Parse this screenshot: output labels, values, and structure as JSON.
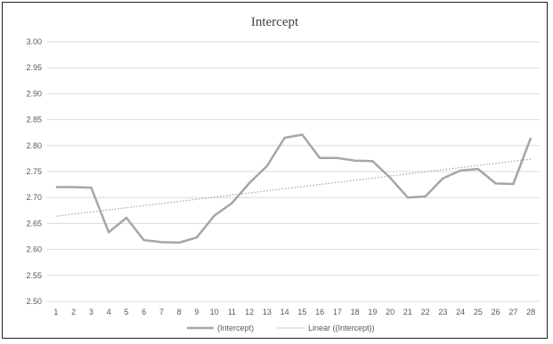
{
  "chart_data": {
    "type": "line",
    "title": "Intercept",
    "xlabel": "",
    "ylabel": "",
    "ylim": [
      2.5,
      3.0
    ],
    "ytick_step": 0.05,
    "yticks": [
      "2.50",
      "2.55",
      "2.60",
      "2.65",
      "2.70",
      "2.75",
      "2.80",
      "2.85",
      "2.90",
      "2.95",
      "3.00"
    ],
    "x": [
      1,
      2,
      3,
      4,
      5,
      6,
      7,
      8,
      9,
      10,
      11,
      12,
      13,
      14,
      15,
      16,
      17,
      18,
      19,
      20,
      21,
      22,
      23,
      24,
      25,
      26,
      27,
      28
    ],
    "series": [
      {
        "name": "(Intercept)",
        "color": "#a6a6a6",
        "style": "solid",
        "values": [
          2.72,
          2.72,
          2.719,
          2.633,
          2.661,
          2.618,
          2.614,
          2.613,
          2.623,
          2.665,
          2.689,
          2.728,
          2.761,
          2.815,
          2.821,
          2.776,
          2.776,
          2.771,
          2.77,
          2.738,
          2.7,
          2.702,
          2.737,
          2.752,
          2.755,
          2.727,
          2.726,
          2.815
        ]
      },
      {
        "name": "Linear ((Intercept))",
        "color": "#a6a6a6",
        "style": "dotted",
        "trend_start": 2.664,
        "trend_end": 2.774
      }
    ],
    "grid": true,
    "legend_position": "bottom"
  }
}
